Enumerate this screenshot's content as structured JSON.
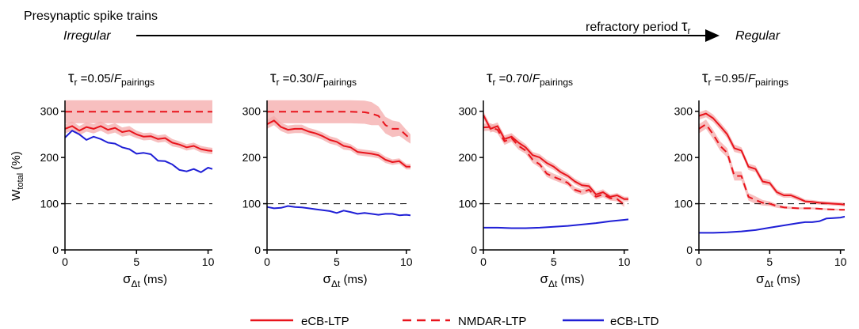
{
  "header": {
    "title": "Presynaptic spike trains",
    "left_label": "Irregular",
    "right_label": "Regular",
    "arrow_label": "refractory period",
    "arrow_symbol": "τ",
    "arrow_symbol_sub": "r"
  },
  "legend": {
    "items": [
      {
        "label": "eCB-LTP",
        "color": "#e8141c",
        "dash": "solid"
      },
      {
        "label": "NMDAR-LTP",
        "color": "#e8141c",
        "dash": "dashed"
      },
      {
        "label": "eCB-LTD",
        "color": "#1f1fd6",
        "dash": "solid"
      }
    ]
  },
  "colors": {
    "ltp": "#e8141c",
    "ltd": "#1f1fd6",
    "band": "#f4aaaa",
    "reference": "#000000"
  },
  "chart_data": [
    {
      "type": "line",
      "title": {
        "symbol": "τ",
        "symbol_sub": "r",
        "text": " =0.05/",
        "italic": "F",
        "sub": "pairings"
      },
      "ylabel": {
        "main": "W",
        "sub": "total",
        "unit": " (%)"
      },
      "xlabel": {
        "symbol": "σ",
        "sub": "Δt",
        "unit": " (ms)"
      },
      "xlim": [
        0,
        10.3
      ],
      "ylim": [
        0,
        320
      ],
      "xticks": [
        0,
        5,
        10
      ],
      "yticks": [
        0,
        100,
        200,
        300
      ],
      "reference_y": 100,
      "series": [
        {
          "name": "eCB-LTP",
          "color": "#e8141c",
          "dash": "solid",
          "band": true,
          "x": [
            0,
            0.5,
            1,
            1.5,
            2,
            2.5,
            3,
            3.5,
            4,
            4.5,
            5,
            5.5,
            6,
            6.5,
            7,
            7.5,
            8,
            8.5,
            9,
            9.5,
            10,
            10.3
          ],
          "y": [
            262,
            268,
            258,
            266,
            262,
            268,
            260,
            264,
            255,
            258,
            250,
            245,
            246,
            240,
            242,
            232,
            228,
            222,
            225,
            218,
            215,
            214
          ],
          "band_halfwidth": [
            10,
            10,
            10,
            10,
            10,
            10,
            10,
            10,
            10,
            10,
            8,
            8,
            8,
            8,
            8,
            8,
            7,
            7,
            7,
            7,
            7,
            7
          ]
        },
        {
          "name": "NMDAR-LTP",
          "color": "#e8141c",
          "dash": "dashed",
          "band": true,
          "x": [
            0,
            1,
            2,
            3,
            4,
            5,
            6,
            7,
            8,
            9,
            10,
            10.3
          ],
          "y": [
            299,
            299,
            299,
            299,
            299,
            299,
            299,
            299,
            299,
            299,
            299,
            299
          ],
          "band_halfwidth": [
            25,
            25,
            25,
            25,
            25,
            25,
            25,
            25,
            25,
            25,
            25,
            25
          ]
        },
        {
          "name": "eCB-LTD",
          "color": "#1f1fd6",
          "dash": "solid",
          "band": false,
          "x": [
            0,
            0.5,
            1,
            1.5,
            2,
            2.5,
            3,
            3.5,
            4,
            4.5,
            5,
            5.5,
            6,
            6.5,
            7,
            7.5,
            8,
            8.5,
            9,
            9.5,
            10,
            10.3
          ],
          "y": [
            243,
            258,
            250,
            238,
            245,
            240,
            232,
            230,
            222,
            218,
            208,
            210,
            207,
            193,
            192,
            185,
            173,
            170,
            175,
            168,
            178,
            175
          ]
        }
      ]
    },
    {
      "type": "line",
      "title": {
        "symbol": "τ",
        "symbol_sub": "r",
        "text": " =0.30/",
        "italic": "F",
        "sub": "pairings"
      },
      "ylabel": null,
      "xlabel": {
        "symbol": "σ",
        "sub": "Δt",
        "unit": " (ms)"
      },
      "xlim": [
        0,
        10.3
      ],
      "ylim": [
        0,
        320
      ],
      "xticks": [
        0,
        5,
        10
      ],
      "yticks": [
        0,
        100,
        200,
        300
      ],
      "reference_y": 100,
      "series": [
        {
          "name": "eCB-LTP",
          "color": "#e8141c",
          "dash": "solid",
          "band": true,
          "x": [
            0,
            0.5,
            1,
            1.5,
            2,
            2.5,
            3,
            3.5,
            4,
            4.5,
            5,
            5.5,
            6,
            6.5,
            7,
            7.5,
            8,
            8.5,
            9,
            9.5,
            10,
            10.3
          ],
          "y": [
            272,
            280,
            266,
            260,
            262,
            262,
            256,
            252,
            246,
            238,
            234,
            225,
            222,
            212,
            210,
            208,
            205,
            195,
            190,
            192,
            180,
            180
          ],
          "band_halfwidth": [
            10,
            10,
            9,
            9,
            9,
            9,
            8,
            8,
            8,
            8,
            8,
            8,
            7,
            7,
            7,
            7,
            7,
            7,
            6,
            6,
            6,
            6
          ]
        },
        {
          "name": "NMDAR-LTP",
          "color": "#e8141c",
          "dash": "dashed",
          "band": true,
          "x": [
            0,
            1,
            2,
            3,
            4,
            5,
            6,
            7,
            7.5,
            8,
            8.5,
            9,
            9.5,
            10,
            10.3
          ],
          "y": [
            299,
            299,
            299,
            299,
            299,
            299,
            299,
            298,
            295,
            290,
            270,
            262,
            262,
            248,
            240
          ],
          "band_halfwidth": [
            25,
            25,
            25,
            25,
            25,
            25,
            25,
            25,
            25,
            20,
            18,
            18,
            15,
            12,
            10
          ]
        },
        {
          "name": "eCB-LTD",
          "color": "#1f1fd6",
          "dash": "solid",
          "band": false,
          "x": [
            0,
            0.5,
            1,
            1.5,
            2,
            2.5,
            3,
            3.5,
            4,
            4.5,
            5,
            5.5,
            6,
            6.5,
            7,
            7.5,
            8,
            8.5,
            9,
            9.5,
            10,
            10.3
          ],
          "y": [
            93,
            90,
            91,
            95,
            93,
            92,
            90,
            88,
            86,
            84,
            80,
            85,
            82,
            78,
            80,
            78,
            76,
            78,
            78,
            75,
            76,
            75
          ]
        }
      ]
    },
    {
      "type": "line",
      "title": {
        "symbol": "τ",
        "symbol_sub": "r",
        "text": " =0.70/",
        "italic": "F",
        "sub": "pairings"
      },
      "ylabel": null,
      "xlabel": {
        "symbol": "σ",
        "sub": "Δt",
        "unit": " (ms)"
      },
      "xlim": [
        0,
        10.3
      ],
      "ylim": [
        0,
        320
      ],
      "xticks": [
        0,
        5,
        10
      ],
      "yticks": [
        0,
        100,
        200,
        300
      ],
      "reference_y": 100,
      "series": [
        {
          "name": "eCB-LTP",
          "color": "#e8141c",
          "dash": "solid",
          "band": true,
          "x": [
            0,
            0.5,
            1,
            1.5,
            2,
            2.5,
            3,
            3.5,
            4,
            4.5,
            5,
            5.5,
            6,
            6.5,
            7,
            7.5,
            8,
            8.5,
            9,
            9.5,
            10,
            10.3
          ],
          "y": [
            292,
            262,
            268,
            240,
            245,
            232,
            222,
            205,
            200,
            188,
            180,
            168,
            160,
            148,
            140,
            138,
            120,
            125,
            115,
            118,
            110,
            110
          ],
          "band_halfwidth": [
            8,
            8,
            8,
            8,
            8,
            8,
            7,
            7,
            7,
            7,
            7,
            7,
            6,
            6,
            6,
            6,
            6,
            6,
            5,
            5,
            5,
            5
          ]
        },
        {
          "name": "NMDAR-LTP",
          "color": "#e8141c",
          "dash": "dashed",
          "band": true,
          "x": [
            0,
            0.5,
            1,
            1.5,
            2,
            2.5,
            3,
            3.5,
            4,
            4.5,
            5,
            5.5,
            6,
            6.5,
            7,
            7.5,
            8,
            8.5,
            9,
            9.5,
            10
          ],
          "y": [
            265,
            266,
            260,
            235,
            242,
            225,
            215,
            195,
            185,
            165,
            158,
            152,
            145,
            130,
            125,
            130,
            115,
            120,
            112,
            110,
            98
          ],
          "band_halfwidth": [
            8,
            8,
            8,
            8,
            8,
            8,
            7,
            7,
            7,
            7,
            7,
            7,
            6,
            6,
            6,
            6,
            6,
            6,
            5,
            5,
            5
          ]
        },
        {
          "name": "eCB-LTD",
          "color": "#1f1fd6",
          "dash": "solid",
          "band": false,
          "x": [
            0,
            1,
            2,
            3,
            4,
            5,
            6,
            7,
            8,
            9,
            10,
            10.3
          ],
          "y": [
            48,
            48,
            47,
            47,
            48,
            50,
            52,
            55,
            58,
            62,
            65,
            66
          ]
        }
      ]
    },
    {
      "type": "line",
      "title": {
        "symbol": "τ",
        "symbol_sub": "r",
        "text": " =0.95/",
        "italic": "F",
        "sub": "pairings"
      },
      "ylabel": null,
      "xlabel": {
        "symbol": "σ",
        "sub": "Δt",
        "unit": " (ms)"
      },
      "xlim": [
        0,
        10.3
      ],
      "ylim": [
        0,
        320
      ],
      "xticks": [
        0,
        5,
        10
      ],
      "yticks": [
        0,
        100,
        200,
        300
      ],
      "reference_y": 100,
      "series": [
        {
          "name": "eCB-LTP",
          "color": "#e8141c",
          "dash": "solid",
          "band": true,
          "x": [
            0,
            0.5,
            1,
            1.5,
            2,
            2.5,
            3,
            3.5,
            4,
            4.5,
            5,
            5.5,
            6,
            6.5,
            7,
            7.5,
            8,
            8.5,
            9,
            9.5,
            10,
            10.3
          ],
          "y": [
            290,
            295,
            285,
            268,
            250,
            220,
            215,
            180,
            175,
            148,
            145,
            125,
            118,
            118,
            112,
            105,
            104,
            102,
            101,
            100,
            99,
            98
          ],
          "band_halfwidth": [
            8,
            8,
            8,
            8,
            8,
            8,
            7,
            7,
            7,
            7,
            6,
            6,
            5,
            5,
            5,
            4,
            4,
            4,
            4,
            4,
            4,
            4
          ]
        },
        {
          "name": "NMDAR-LTP",
          "color": "#e8141c",
          "dash": "dashed",
          "band": true,
          "x": [
            0,
            0.5,
            1,
            1.5,
            2,
            2.5,
            3,
            3.5,
            4,
            4.5,
            5,
            5.5,
            6,
            7,
            8,
            9,
            10,
            10.3
          ],
          "y": [
            262,
            272,
            250,
            225,
            210,
            160,
            160,
            115,
            108,
            102,
            100,
            95,
            92,
            90,
            90,
            88,
            87,
            87
          ],
          "band_halfwidth": [
            10,
            10,
            10,
            10,
            10,
            10,
            10,
            8,
            8,
            6,
            5,
            4,
            3,
            2,
            2,
            2,
            2,
            2
          ]
        },
        {
          "name": "eCB-LTD",
          "color": "#1f1fd6",
          "dash": "solid",
          "band": false,
          "x": [
            0,
            1,
            2,
            3,
            4,
            5,
            6,
            7,
            7.5,
            8,
            8.5,
            9,
            9.5,
            10,
            10.3
          ],
          "y": [
            37,
            37,
            38,
            40,
            43,
            48,
            53,
            58,
            60,
            60,
            62,
            68,
            69,
            70,
            72
          ]
        }
      ]
    }
  ]
}
